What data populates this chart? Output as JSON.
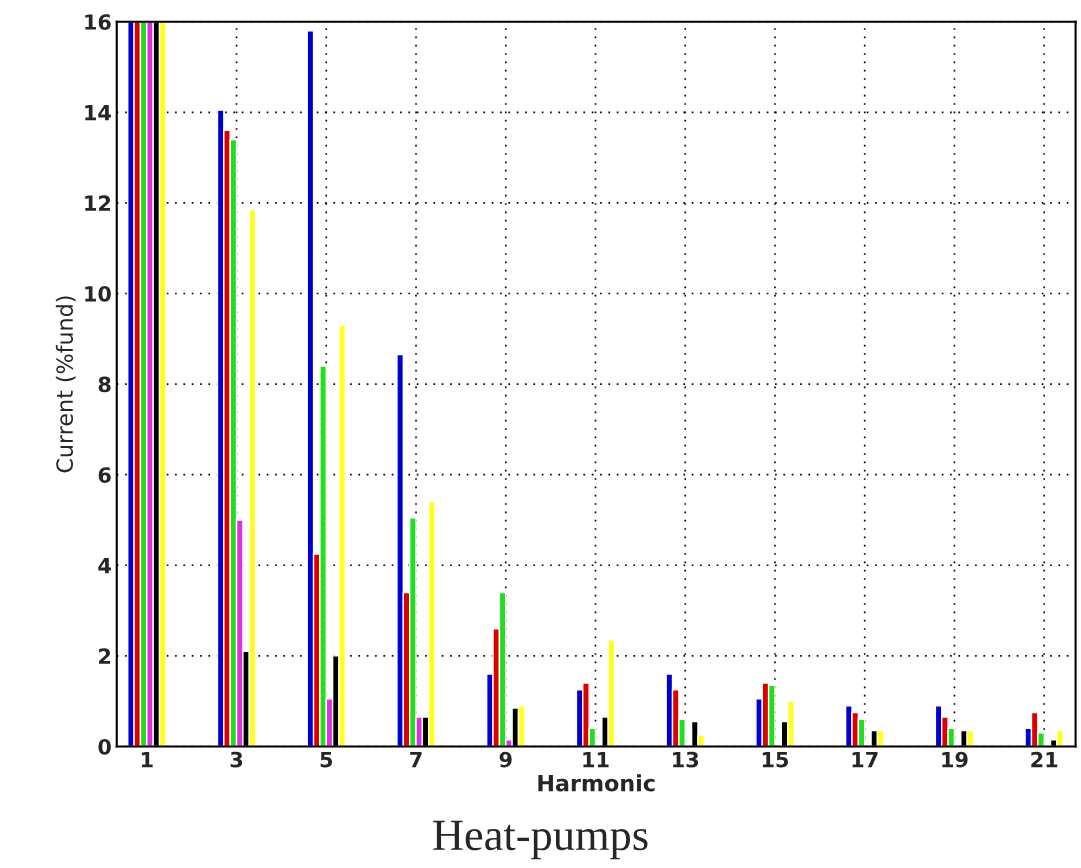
{
  "chart_data": {
    "type": "bar",
    "title": "Heat-pumps",
    "xlabel": "Harmonic",
    "ylabel": "Current (%fund)",
    "x": [
      1,
      3,
      5,
      7,
      9,
      11,
      13,
      15,
      17,
      19,
      21
    ],
    "series": [
      {
        "color": "#0000cc",
        "values": [
          16,
          14.05,
          15.8,
          8.65,
          1.6,
          1.25,
          1.6,
          1.05,
          0.9,
          0.9,
          0.4
        ]
      },
      {
        "color": "#dd0000",
        "values": [
          16,
          13.6,
          4.25,
          3.4,
          2.6,
          1.4,
          1.25,
          1.4,
          0.75,
          0.65,
          0.75
        ]
      },
      {
        "color": "#22dd22",
        "values": [
          16,
          13.4,
          8.4,
          5.05,
          3.4,
          0.4,
          0.6,
          1.35,
          0.6,
          0.4,
          0.3
        ]
      },
      {
        "color": "#dd33dd",
        "values": [
          16,
          5.0,
          1.05,
          0.65,
          0.15,
          null,
          null,
          null,
          null,
          null,
          null
        ]
      },
      {
        "color": "#000000",
        "values": [
          16,
          2.1,
          2.0,
          0.65,
          0.85,
          0.65,
          0.55,
          0.55,
          0.35,
          0.35,
          0.15
        ]
      },
      {
        "color": "#ffff22",
        "values": [
          16,
          11.85,
          9.3,
          5.4,
          0.9,
          2.35,
          0.25,
          1.0,
          0.35,
          0.35,
          0.35
        ]
      }
    ],
    "xlim": [
      0.33,
      21.7
    ],
    "xticks": [
      1,
      3,
      5,
      7,
      9,
      11,
      13,
      15,
      17,
      19,
      21
    ],
    "ylim": [
      0,
      16
    ],
    "yticks": [
      0,
      2,
      4,
      6,
      8,
      10,
      12,
      14,
      16
    ],
    "grid": true,
    "legend": false
  }
}
